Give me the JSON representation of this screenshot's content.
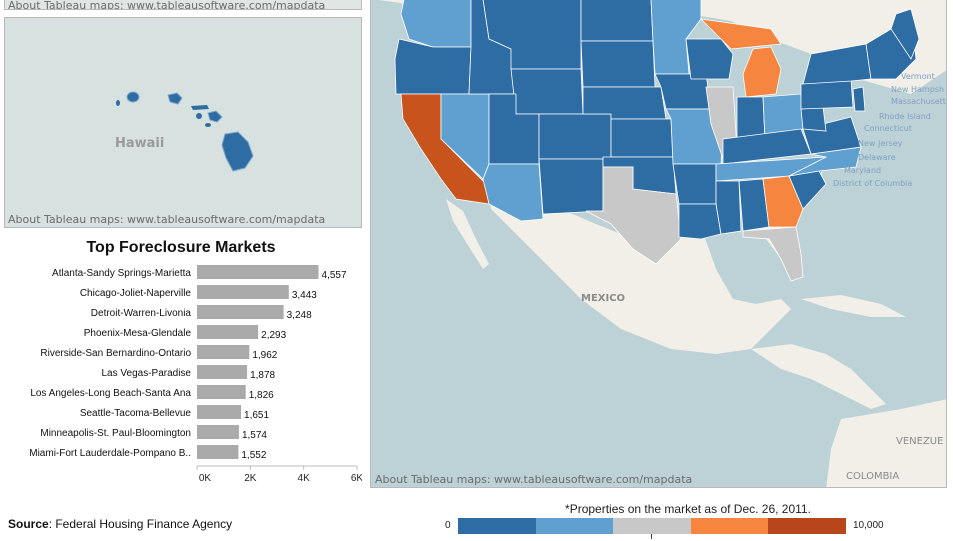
{
  "maps": {
    "credit": "About Tableau maps: www.tableausoftware.com/mapdata",
    "hawaii_label": "Hawaii",
    "labels": {
      "mexico": "MEXICO",
      "venezuela": "VENEZUE",
      "colombia": "COLOMBIA"
    },
    "northeast_labels": [
      "Vermont",
      "New Hampsh",
      "Massachusett",
      "Rhode Island",
      "Connecticut",
      "New Jersey",
      "Delaware",
      "Maryland",
      "District of Columbia"
    ],
    "colors": {
      "dark_blue": "#2e6ca4",
      "light_blue": "#5fa0d0",
      "gray": "#c8c8c8",
      "orange": "#f5853f",
      "dark_orange": "#c9531c",
      "land": "#f1efe8",
      "water": "#bcd2d6"
    }
  },
  "chart_data": {
    "type": "bar",
    "title": "Top Foreclosure Markets",
    "categories": [
      "Atlanta-Sandy Springs-Marietta",
      "Chicago-Joliet-Naperville",
      "Detroit-Warren-Livonia",
      "Phoenix-Mesa-Glendale",
      "Riverside-San Bernardino-Ontario",
      "Las Vegas-Paradise",
      "Los Angeles-Long Beach-Santa Ana",
      "Seattle-Tacoma-Bellevue",
      "Minneapolis-St. Paul-Bloomington",
      "Miami-Fort Lauderdale-Pompano B.."
    ],
    "values": [
      4557,
      3443,
      3248,
      2293,
      1962,
      1878,
      1826,
      1651,
      1574,
      1552
    ],
    "value_labels": [
      "4,557",
      "3,443",
      "3,248",
      "2,293",
      "1,962",
      "1,878",
      "1,826",
      "1,651",
      "1,574",
      "1,552"
    ],
    "xlim": [
      0,
      6000
    ],
    "xticks": [
      "0K",
      "2K",
      "4K",
      "6K"
    ],
    "bar_color": "#aaaaaa"
  },
  "legend": {
    "note": "*Properties on the market as of Dec. 26, 2011.",
    "min_label": "0",
    "max_label": "10,000",
    "colors": [
      "#2e6ca4",
      "#5fa0d0",
      "#c8c8c8",
      "#f5853f",
      "#b8461a"
    ]
  },
  "source": {
    "label": "Source",
    "text": ": Federal Housing Finance Agency"
  }
}
